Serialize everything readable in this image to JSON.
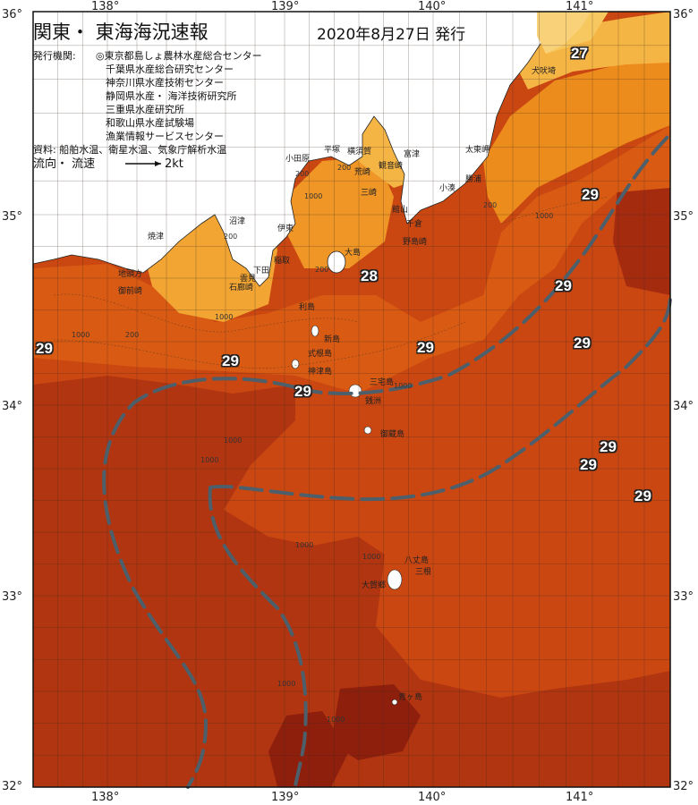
{
  "title": "関東・ 東海海況速報",
  "issued": "2020年8月27日 発行",
  "issuers_label": "発行機関:",
  "issuers": [
    "◎東京都島しょ農林水産総合センター",
    "千葉県水産総合研究センター",
    "神奈川県水産技術センター",
    "静岡県水産・ 海洋技術研究所",
    "三重県水産研究所",
    "和歌山県水産試験場",
    "漁業情報サービスセンター"
  ],
  "sources": "資料: 船舶水温、衛星水温、気象庁解析水温",
  "flow_label": "流向・ 流速",
  "flow_scale": "2kt",
  "lon_labels": [
    "138°",
    "139°",
    "140°",
    "141°"
  ],
  "lat_labels": [
    "36°",
    "35°",
    "34°",
    "33°",
    "32°"
  ],
  "temperature_labels": [
    "27",
    "29",
    "28",
    "29",
    "29",
    "29",
    "29",
    "29",
    "29",
    "29",
    "29",
    "29"
  ],
  "place_names": [
    "犬吠埼",
    "太東岬",
    "勝浦",
    "小湊",
    "富津",
    "館山",
    "千倉",
    "野島崎",
    "横須賀",
    "平塚",
    "小田原",
    "観音崎",
    "三崎",
    "荒崎",
    "伊東",
    "稲取",
    "下田",
    "雲見",
    "石廊崎",
    "沼津",
    "焼津",
    "地頭方",
    "御前崎",
    "大島",
    "利島",
    "新島",
    "式根島",
    "神津島",
    "三宅島",
    "御蔵島",
    "八丈島",
    "三根",
    "大賀郷",
    "青ヶ島",
    "銭洲"
  ],
  "depth_labels": [
    "200",
    "1000",
    "200",
    "1000",
    "200",
    "1000",
    "200",
    "1000",
    "1000",
    "1000",
    "1000",
    "1000",
    "1000",
    "200",
    "1000",
    "200",
    "1000"
  ],
  "colors": {
    "land": "#ffffff",
    "sst_very_warm": "#a52b0f",
    "sst_warm": "#c8450f",
    "sst_mid": "#de6a12",
    "sst_cool": "#ec8c1c",
    "sst_cooler": "#f3a834",
    "sst_coolest": "#f7c35a",
    "current": "#4c5f6a"
  }
}
